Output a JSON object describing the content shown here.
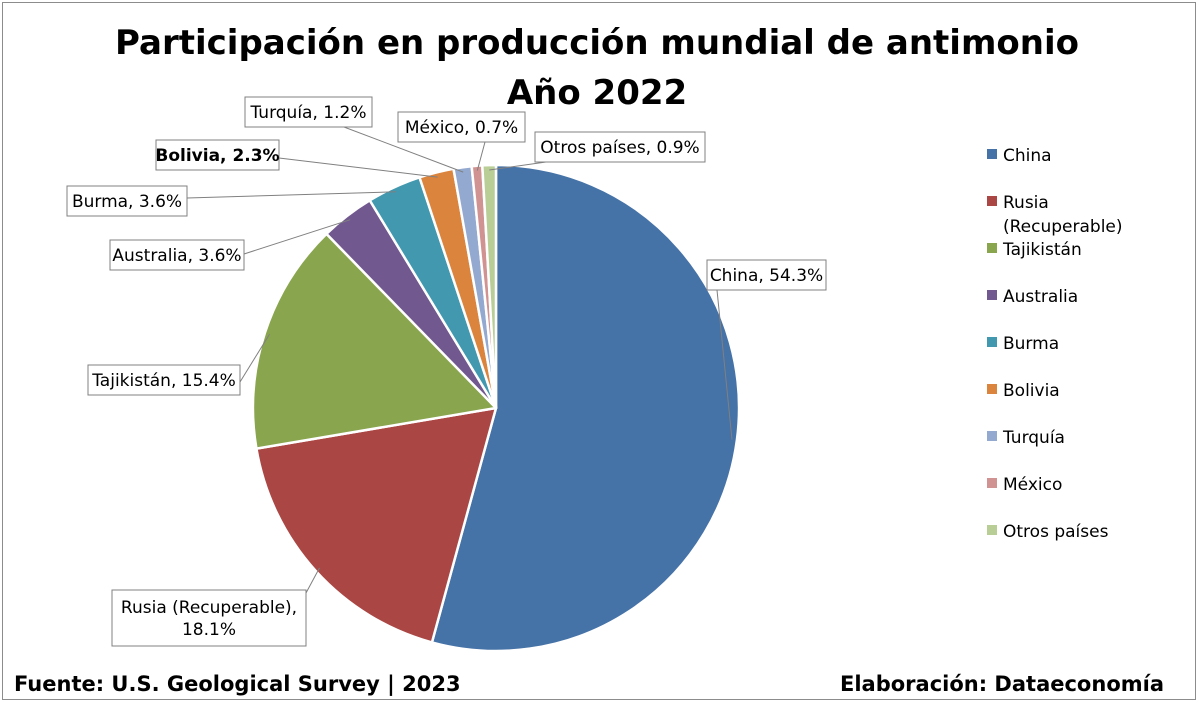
{
  "chart_data": {
    "type": "pie",
    "title": "Participación en producción mundial de antimonio",
    "subtitle": "Año 2022",
    "slices": [
      {
        "name": "China",
        "value": 54.3,
        "label": "China, 54.3%",
        "color": "#4572A7"
      },
      {
        "name": "Rusia (Recuperable)",
        "value": 18.1,
        "label": "Rusia (Recuperable), 18.1%",
        "label_lines": [
          "Rusia (Recuperable),",
          "18.1%"
        ],
        "color": "#AA4643"
      },
      {
        "name": "Tajikistán",
        "value": 15.4,
        "label": "Tajikistán, 15.4%",
        "color": "#89A54E"
      },
      {
        "name": "Australia",
        "value": 3.6,
        "label": "Australia, 3.6%",
        "color": "#71588F"
      },
      {
        "name": "Burma",
        "value": 3.6,
        "label": "Burma, 3.6%",
        "color": "#4198AF"
      },
      {
        "name": "Bolivia",
        "value": 2.3,
        "label": "Bolivia, 2.3%",
        "color": "#DB843D",
        "bold": true
      },
      {
        "name": "Turquía",
        "value": 1.2,
        "label": "Turquía, 1.2%",
        "color": "#93A9CF"
      },
      {
        "name": "México",
        "value": 0.7,
        "label": "México, 0.7%",
        "color": "#D19392"
      },
      {
        "name": "Otros países",
        "value": 0.9,
        "label": "Otros países, 0.9%",
        "color": "#B9CD96"
      }
    ],
    "legend": [
      {
        "lines": [
          "China"
        ]
      },
      {
        "lines": [
          "Rusia",
          "(Recuperable)"
        ]
      },
      {
        "lines": [
          "Tajikistán"
        ]
      },
      {
        "lines": [
          "Australia"
        ]
      },
      {
        "lines": [
          "Burma"
        ]
      },
      {
        "lines": [
          "Bolivia"
        ]
      },
      {
        "lines": [
          "Turquía"
        ]
      },
      {
        "lines": [
          "México"
        ]
      },
      {
        "lines": [
          "Otros países"
        ]
      }
    ],
    "legend_position": "right",
    "start_angle": "12 o'clock",
    "direction": "clockwise"
  },
  "footer": {
    "source": "Fuente: U.S. Geological Survey | 2023",
    "credit": "Elaboración: Dataeconomía"
  }
}
